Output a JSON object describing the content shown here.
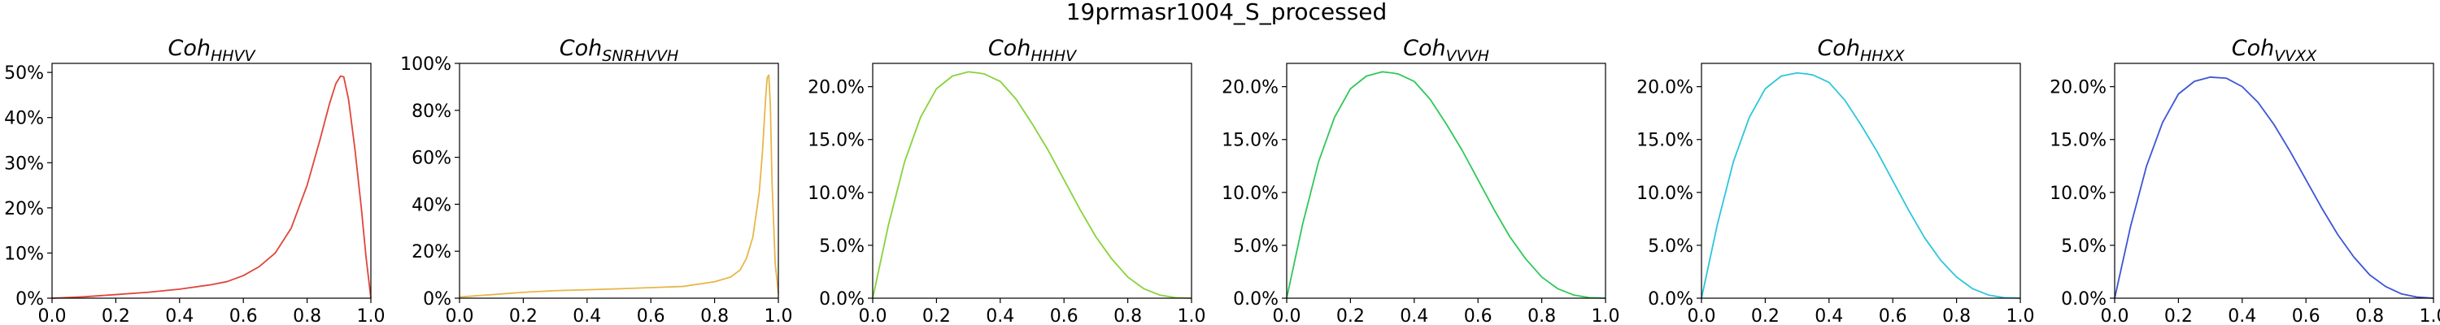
{
  "suptitle": "19prmasr1004_S_processed",
  "chart_data": [
    {
      "type": "line",
      "title_main": "Coh",
      "title_sub": "HHVV",
      "color": "#e0453a",
      "xlim": [
        0,
        1
      ],
      "ylim": [
        0,
        0.52
      ],
      "x_ticks": [
        0,
        0.2,
        0.4,
        0.6,
        0.8,
        1.0
      ],
      "x_tick_labels": [
        "0.0",
        "0.2",
        "0.4",
        "0.6",
        "0.8",
        "1.0"
      ],
      "y_ticks": [
        0,
        0.1,
        0.2,
        0.3,
        0.4,
        0.5
      ],
      "y_tick_labels": [
        "0%",
        "10%",
        "20%",
        "30%",
        "40%",
        "50%"
      ],
      "x": [
        0,
        0.1,
        0.2,
        0.3,
        0.4,
        0.5,
        0.55,
        0.6,
        0.65,
        0.7,
        0.75,
        0.8,
        0.84,
        0.87,
        0.89,
        0.905,
        0.915,
        0.93,
        0.95,
        0.97,
        0.985,
        1.0
      ],
      "y": [
        0,
        0.003,
        0.008,
        0.013,
        0.02,
        0.03,
        0.037,
        0.05,
        0.07,
        0.1,
        0.155,
        0.25,
        0.35,
        0.43,
        0.475,
        0.492,
        0.49,
        0.44,
        0.33,
        0.2,
        0.09,
        0.0
      ]
    },
    {
      "type": "line",
      "title_main": "Coh",
      "title_sub": "SNRHVVH",
      "color": "#e8b649",
      "xlim": [
        0,
        1
      ],
      "ylim": [
        0,
        1.0
      ],
      "x_ticks": [
        0,
        0.2,
        0.4,
        0.6,
        0.8,
        1.0
      ],
      "x_tick_labels": [
        "0.0",
        "0.2",
        "0.4",
        "0.6",
        "0.8",
        "1.0"
      ],
      "y_ticks": [
        0,
        0.2,
        0.4,
        0.6,
        0.8,
        1.0
      ],
      "y_tick_labels": [
        "0%",
        "20%",
        "40%",
        "60%",
        "80%",
        "100%"
      ],
      "x": [
        0,
        0.1,
        0.2,
        0.3,
        0.4,
        0.5,
        0.6,
        0.7,
        0.8,
        0.85,
        0.88,
        0.9,
        0.92,
        0.94,
        0.95,
        0.96,
        0.965,
        0.97,
        0.975,
        0.98,
        0.99,
        1.0
      ],
      "y": [
        0.005,
        0.015,
        0.025,
        0.032,
        0.036,
        0.04,
        0.045,
        0.05,
        0.07,
        0.09,
        0.12,
        0.17,
        0.26,
        0.45,
        0.62,
        0.85,
        0.94,
        0.95,
        0.82,
        0.5,
        0.15,
        0.02
      ]
    },
    {
      "type": "line",
      "title_main": "Coh",
      "title_sub": "HHHV",
      "color": "#86d33a",
      "xlim": [
        0,
        1
      ],
      "ylim": [
        0,
        0.222
      ],
      "x_ticks": [
        0,
        0.2,
        0.4,
        0.6,
        0.8,
        1.0
      ],
      "x_tick_labels": [
        "0.0",
        "0.2",
        "0.4",
        "0.6",
        "0.8",
        "1.0"
      ],
      "y_ticks": [
        0,
        0.05,
        0.1,
        0.15,
        0.2
      ],
      "y_tick_labels": [
        "0.0%",
        "5.0%",
        "10.0%",
        "15.0%",
        "20.0%"
      ],
      "x": [
        0,
        0.05,
        0.1,
        0.15,
        0.2,
        0.25,
        0.3,
        0.33,
        0.35,
        0.4,
        0.45,
        0.5,
        0.55,
        0.6,
        0.65,
        0.7,
        0.75,
        0.8,
        0.85,
        0.9,
        0.95,
        1.0
      ],
      "y": [
        0,
        0.07,
        0.129,
        0.171,
        0.198,
        0.21,
        0.214,
        0.213,
        0.212,
        0.205,
        0.188,
        0.165,
        0.14,
        0.112,
        0.084,
        0.058,
        0.037,
        0.02,
        0.009,
        0.003,
        0.0005,
        0
      ]
    },
    {
      "type": "line",
      "title_main": "Coh",
      "title_sub": "VVVH",
      "color": "#2fc85a",
      "xlim": [
        0,
        1
      ],
      "ylim": [
        0,
        0.222
      ],
      "x_ticks": [
        0,
        0.2,
        0.4,
        0.6,
        0.8,
        1.0
      ],
      "x_tick_labels": [
        "0.0",
        "0.2",
        "0.4",
        "0.6",
        "0.8",
        "1.0"
      ],
      "y_ticks": [
        0,
        0.05,
        0.1,
        0.15,
        0.2
      ],
      "y_tick_labels": [
        "0.0%",
        "5.0%",
        "10.0%",
        "15.0%",
        "20.0%"
      ],
      "x": [
        0,
        0.05,
        0.1,
        0.15,
        0.2,
        0.25,
        0.3,
        0.33,
        0.35,
        0.4,
        0.45,
        0.5,
        0.55,
        0.6,
        0.65,
        0.7,
        0.75,
        0.8,
        0.85,
        0.9,
        0.95,
        1.0
      ],
      "y": [
        0,
        0.07,
        0.129,
        0.171,
        0.198,
        0.21,
        0.214,
        0.213,
        0.212,
        0.205,
        0.188,
        0.165,
        0.14,
        0.112,
        0.084,
        0.058,
        0.037,
        0.02,
        0.009,
        0.003,
        0.0005,
        0
      ]
    },
    {
      "type": "line",
      "title_main": "Coh",
      "title_sub": "HHXX",
      "color": "#2cc6dc",
      "xlim": [
        0,
        1
      ],
      "ylim": [
        0,
        0.222
      ],
      "x_ticks": [
        0,
        0.2,
        0.4,
        0.6,
        0.8,
        1.0
      ],
      "x_tick_labels": [
        "0.0",
        "0.2",
        "0.4",
        "0.6",
        "0.8",
        "1.0"
      ],
      "y_ticks": [
        0,
        0.05,
        0.1,
        0.15,
        0.2
      ],
      "y_tick_labels": [
        "0.0%",
        "5.0%",
        "10.0%",
        "15.0%",
        "20.0%"
      ],
      "x": [
        0,
        0.05,
        0.1,
        0.15,
        0.2,
        0.25,
        0.3,
        0.33,
        0.35,
        0.4,
        0.45,
        0.5,
        0.55,
        0.6,
        0.65,
        0.7,
        0.75,
        0.8,
        0.85,
        0.9,
        0.95,
        1.0
      ],
      "y": [
        0,
        0.07,
        0.129,
        0.171,
        0.198,
        0.21,
        0.213,
        0.212,
        0.211,
        0.204,
        0.187,
        0.164,
        0.139,
        0.111,
        0.083,
        0.057,
        0.036,
        0.02,
        0.009,
        0.003,
        0.0005,
        0
      ]
    },
    {
      "type": "line",
      "title_main": "Coh",
      "title_sub": "VVXX",
      "color": "#3d55d6",
      "xlim": [
        0,
        1
      ],
      "ylim": [
        0,
        0.222
      ],
      "x_ticks": [
        0,
        0.2,
        0.4,
        0.6,
        0.8,
        1.0
      ],
      "x_tick_labels": [
        "0.0",
        "0.2",
        "0.4",
        "0.6",
        "0.8",
        "1.0"
      ],
      "y_ticks": [
        0,
        0.05,
        0.1,
        0.15,
        0.2
      ],
      "y_tick_labels": [
        "0.0%",
        "5.0%",
        "10.0%",
        "15.0%",
        "20.0%"
      ],
      "x": [
        0,
        0.05,
        0.1,
        0.15,
        0.2,
        0.25,
        0.3,
        0.35,
        0.4,
        0.45,
        0.5,
        0.55,
        0.6,
        0.65,
        0.7,
        0.75,
        0.8,
        0.85,
        0.9,
        0.95,
        1.0
      ],
      "y": [
        0,
        0.068,
        0.125,
        0.166,
        0.193,
        0.205,
        0.209,
        0.208,
        0.2,
        0.185,
        0.164,
        0.139,
        0.112,
        0.085,
        0.06,
        0.039,
        0.022,
        0.011,
        0.004,
        0.001,
        0
      ]
    }
  ]
}
